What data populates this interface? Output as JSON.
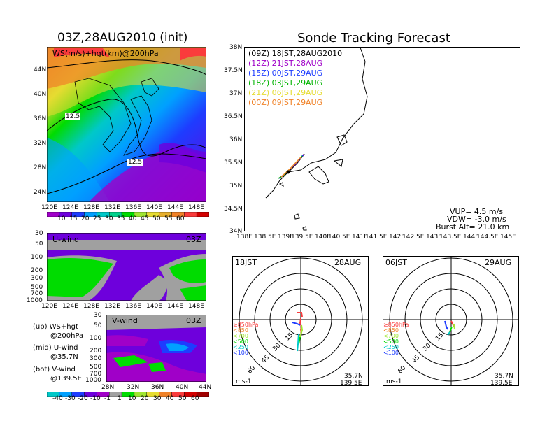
{
  "left_title": "03Z,28AUG2010 (init)",
  "right_title": "Sonde Tracking Forecast",
  "map_panel": {
    "label": "WS(m/s)+hgt(km)@200hPa",
    "lat_labels": [
      "44N",
      "40N",
      "36N",
      "32N",
      "28N",
      "24N"
    ],
    "lon_labels": [
      "120E",
      "124E",
      "128E",
      "132E",
      "136E",
      "140E",
      "144E",
      "148E"
    ],
    "contour_labels": [
      "12.5",
      "12.5"
    ]
  },
  "ws_colorbar": [
    "10",
    "15",
    "20",
    "25",
    "30",
    "35",
    "40",
    "45",
    "50",
    "55",
    "60"
  ],
  "ws_colors": [
    "#a000c8",
    "#6e00dc",
    "#1e3cff",
    "#00a0ff",
    "#00c8c8",
    "#00d28c",
    "#00dc00",
    "#a0e632",
    "#e6dc32",
    "#e6af2d",
    "#f08228",
    "#fa3c3c",
    "#d20000"
  ],
  "u_panel": {
    "label": "U-wind",
    "time": "03Z",
    "p_labels": [
      "30",
      "50",
      "100",
      "200",
      "300",
      "500",
      "700",
      "1000"
    ],
    "lon_labels": [
      "120E",
      "124E",
      "128E",
      "132E",
      "136E",
      "140E",
      "144E",
      "148E"
    ]
  },
  "v_panel": {
    "label": "V-wind",
    "time": "03Z",
    "p_labels": [
      "30",
      "50",
      "100",
      "200",
      "300",
      "500",
      "700",
      "1000"
    ],
    "lat_labels": [
      "28N",
      "32N",
      "36N",
      "40N",
      "44N"
    ]
  },
  "legend_text": {
    "up": "(up) WS+hgt",
    "up2": "@200hPa",
    "mid": "(mid) U-wind",
    "mid2": "@35.7N",
    "bot": "(bot) V-wind",
    "bot2": "@139.5E"
  },
  "uv_colorbar": [
    "-40",
    "-30",
    "-20",
    "-10",
    "-1",
    "1",
    "10",
    "20",
    "30",
    "40",
    "50",
    "60"
  ],
  "uv_colors": [
    "#00c8c8",
    "#00a0ff",
    "#1e3cff",
    "#6e00dc",
    "#a000c8",
    "#a0a0a0",
    "#00dc00",
    "#a0e632",
    "#e6dc32",
    "#f08228",
    "#fa3c3c",
    "#d20000",
    "#a00000"
  ],
  "track_map": {
    "lat_labels": [
      "38N",
      "37.5N",
      "37N",
      "36.5N",
      "36N",
      "35.5N",
      "35N",
      "34.5N",
      "34N"
    ],
    "lon_labels": [
      "138E",
      "138.5E",
      "139E",
      "139.5E",
      "140E",
      "140.5E",
      "141E",
      "141.5E",
      "142E",
      "142.5E",
      "143E",
      "143.5E",
      "144E",
      "144.5E",
      "145E"
    ],
    "legend": [
      {
        "utc": "(09Z)",
        "jst": "18JST,28AUG2010",
        "color": "#000000"
      },
      {
        "utc": "(12Z)",
        "jst": "21JST,28AUG",
        "color": "#a000c8"
      },
      {
        "utc": "(15Z)",
        "jst": "00JST,29AUG",
        "color": "#1e3cff"
      },
      {
        "utc": "(18Z)",
        "jst": "03JST,29AUG",
        "color": "#00b400"
      },
      {
        "utc": "(21Z)",
        "jst": "06JST,29AUG",
        "color": "#e6dc32"
      },
      {
        "utc": "(00Z)",
        "jst": "09JST,29AUG",
        "color": "#f08228"
      }
    ],
    "info": [
      "VUP= 4.5 m/s",
      "VDW= -3.0 m/s",
      "Burst Alt= 21.0 km"
    ]
  },
  "hodo_left": {
    "time": "18JST",
    "date": "28AUG",
    "ring_labels": [
      "15",
      "30",
      "45",
      "60"
    ],
    "levels": [
      {
        "label": "≥850hPa",
        "color": "#fa3c3c"
      },
      {
        "label": "<850",
        "color": "#f08228"
      },
      {
        "label": "<700",
        "color": "#a0e632"
      },
      {
        "label": "<500",
        "color": "#00dc00"
      },
      {
        "label": "<250",
        "color": "#00c8c8"
      },
      {
        "label": "<100",
        "color": "#1e3cff"
      }
    ],
    "lat": "35.7N",
    "lon": "139.5E",
    "unit": "ms-1"
  },
  "hodo_right": {
    "time": "06JST",
    "date": "29AUG",
    "ring_labels": [
      "15",
      "30",
      "45",
      "60"
    ],
    "levels": [
      {
        "label": "≥850hPa",
        "color": "#fa3c3c"
      },
      {
        "label": "<850",
        "color": "#f08228"
      },
      {
        "label": "<700",
        "color": "#a0e632"
      },
      {
        "label": "<500",
        "color": "#00dc00"
      },
      {
        "label": "<250",
        "color": "#00c8c8"
      },
      {
        "label": "<100",
        "color": "#1e3cff"
      }
    ],
    "lat": "35.7N",
    "lon": "139.5E",
    "unit": "ms-1"
  }
}
